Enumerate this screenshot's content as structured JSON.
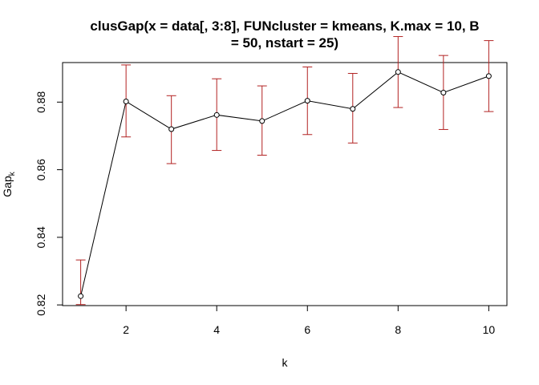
{
  "chart_data": {
    "type": "line",
    "title_lines": [
      "clusGap(x = data[, 3:8], FUNcluster = kmeans, K.max = 10, B",
      "= 50, nstart = 25)"
    ],
    "xlabel": "k",
    "ylabel": "Gap",
    "ylabel_subscript": "k",
    "x": [
      1,
      2,
      3,
      4,
      5,
      6,
      7,
      8,
      9,
      10
    ],
    "series": [
      {
        "values": [
          0.8226,
          0.8802,
          0.872,
          0.8762,
          0.8744,
          0.8804,
          0.878,
          0.8889,
          0.8828,
          0.8877
        ],
        "err_low": [
          0.8201,
          0.8697,
          0.8618,
          0.8657,
          0.8643,
          0.8704,
          0.8679,
          0.8784,
          0.8719,
          0.8772
        ],
        "err_high": [
          0.8333,
          0.891,
          0.8819,
          0.8869,
          0.8848,
          0.8904,
          0.8885,
          0.8994,
          0.8938,
          0.8982
        ]
      }
    ],
    "xlim": [
      0.6,
      10.4
    ],
    "ylim": [
      0.8198,
      0.8917
    ],
    "x_ticks": [
      "2",
      "4",
      "6",
      "8",
      "10"
    ],
    "y_ticks": [
      "0.82",
      "0.84",
      "0.86",
      "0.88"
    ],
    "line_color": "#000000",
    "errorbar_color": "#B22222",
    "grid": false
  }
}
